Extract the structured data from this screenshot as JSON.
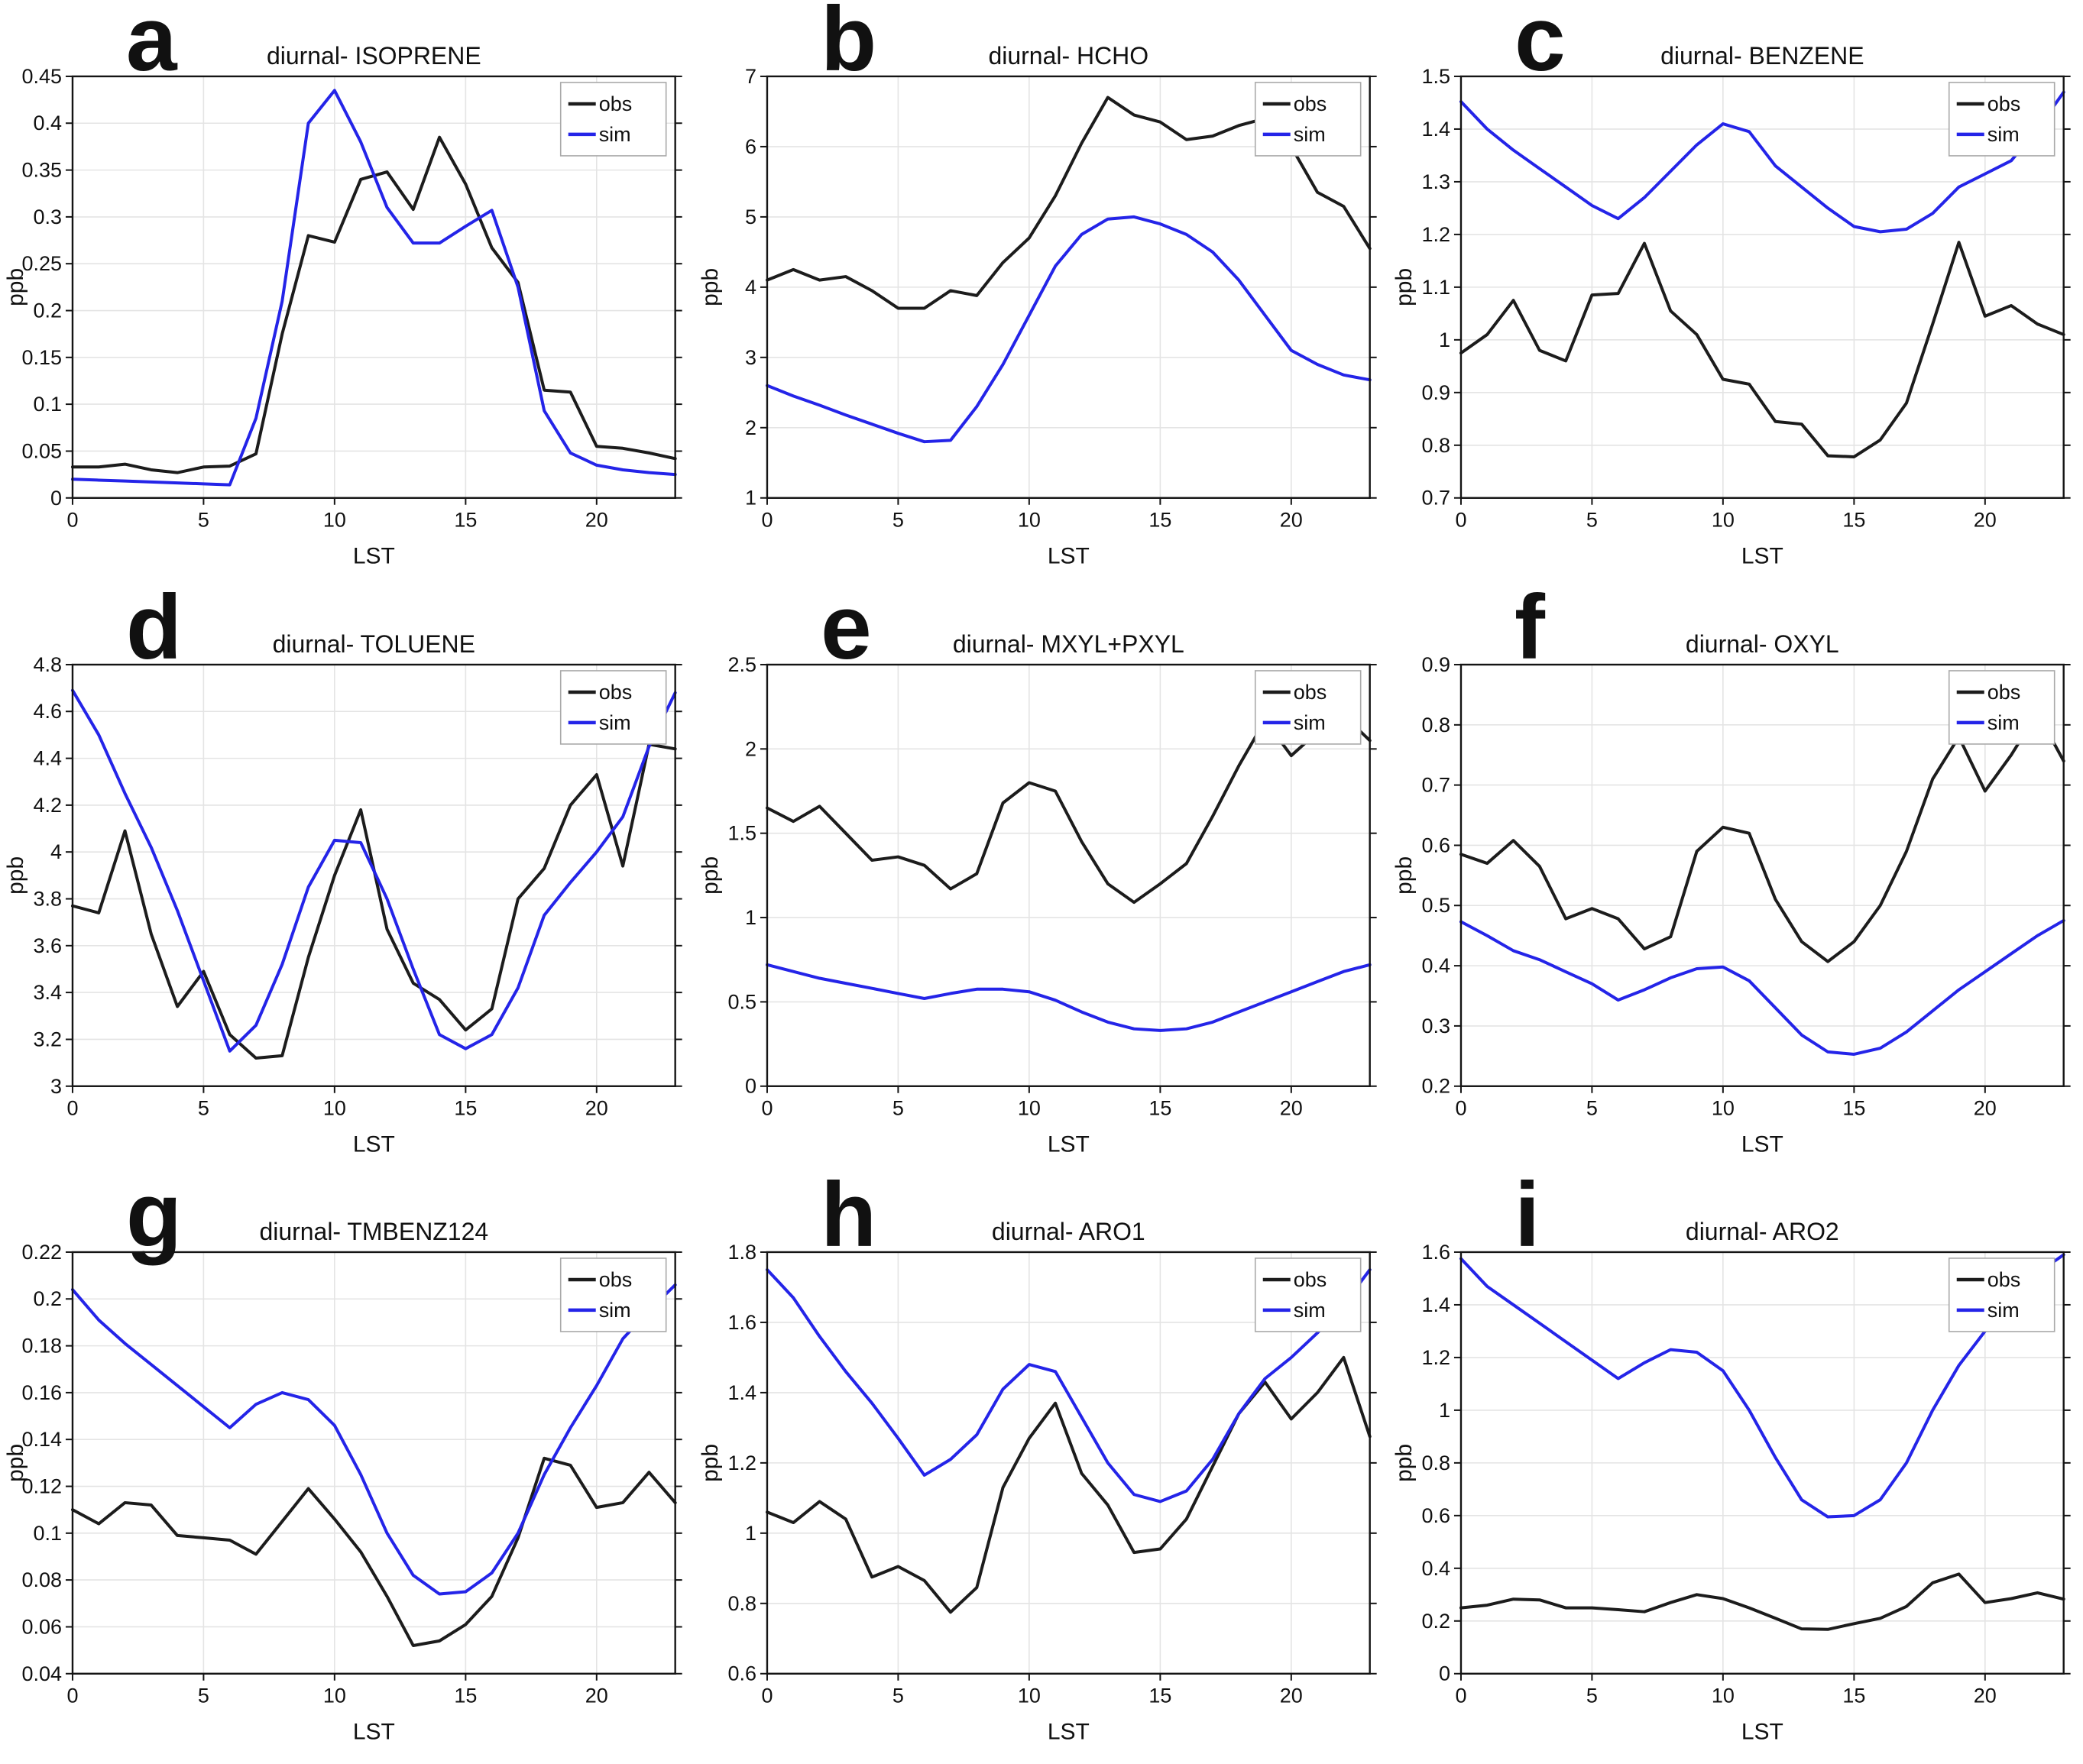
{
  "colors": {
    "obs": "#1c1c1c",
    "sim": "#2424e8",
    "grid": "#e4e4e4",
    "axis": "#141414",
    "background": "#ffffff"
  },
  "legend_labels": {
    "obs": "obs",
    "sim": "sim"
  },
  "chart_data": [
    {
      "panel": "a",
      "type": "line",
      "title": "diurnal- ISOPRENE",
      "xlabel": "LST",
      "ylabel": "ppb",
      "grid": true,
      "legend": [
        "obs",
        "sim"
      ],
      "legend_position": "top-right",
      "x": [
        0,
        1,
        2,
        3,
        4,
        5,
        6,
        7,
        8,
        9,
        10,
        11,
        12,
        13,
        14,
        15,
        16,
        17,
        18,
        19,
        20,
        21,
        22,
        23
      ],
      "xlim": [
        0,
        23
      ],
      "xticks": [
        0,
        5,
        10,
        15,
        20
      ],
      "ylim": [
        0,
        0.45
      ],
      "yticks": [
        0,
        0.05,
        0.1,
        0.15,
        0.2,
        0.25,
        0.3,
        0.35,
        0.4,
        0.45
      ],
      "series": [
        {
          "name": "obs",
          "values": [
            0.033,
            0.033,
            0.036,
            0.03,
            0.027,
            0.033,
            0.034,
            0.047,
            0.175,
            0.28,
            0.273,
            0.34,
            0.348,
            0.308,
            0.385,
            0.335,
            0.267,
            0.23,
            0.115,
            0.113,
            0.055,
            0.053,
            0.048,
            0.042
          ]
        },
        {
          "name": "sim",
          "values": [
            0.02,
            0.019,
            0.018,
            0.017,
            0.016,
            0.015,
            0.014,
            0.085,
            0.21,
            0.4,
            0.435,
            0.38,
            0.31,
            0.272,
            0.272,
            0.29,
            0.307,
            0.225,
            0.093,
            0.048,
            0.035,
            0.03,
            0.027,
            0.025
          ]
        }
      ]
    },
    {
      "panel": "b",
      "type": "line",
      "title": "diurnal- HCHO",
      "xlabel": "LST",
      "ylabel": "ppb",
      "grid": true,
      "legend": [
        "obs",
        "sim"
      ],
      "legend_position": "top-right",
      "x": [
        0,
        1,
        2,
        3,
        4,
        5,
        6,
        7,
        8,
        9,
        10,
        11,
        12,
        13,
        14,
        15,
        16,
        17,
        18,
        19,
        20,
        21,
        22,
        23
      ],
      "xlim": [
        0,
        23
      ],
      "xticks": [
        0,
        5,
        10,
        15,
        20
      ],
      "ylim": [
        1,
        7
      ],
      "yticks": [
        1,
        2,
        3,
        4,
        5,
        6,
        7
      ],
      "series": [
        {
          "name": "obs",
          "values": [
            4.1,
            4.25,
            4.1,
            4.15,
            3.95,
            3.7,
            3.7,
            3.95,
            3.88,
            4.35,
            4.7,
            5.3,
            6.05,
            6.7,
            6.45,
            6.35,
            6.1,
            6.15,
            6.3,
            6.4,
            6.0,
            5.35,
            5.15,
            4.55
          ]
        },
        {
          "name": "sim",
          "values": [
            2.6,
            2.45,
            2.32,
            2.18,
            2.05,
            1.92,
            1.8,
            1.82,
            2.3,
            2.9,
            3.6,
            4.3,
            4.75,
            4.97,
            5.0,
            4.9,
            4.75,
            4.5,
            4.1,
            3.6,
            3.1,
            2.9,
            2.75,
            2.68
          ]
        }
      ]
    },
    {
      "panel": "c",
      "type": "line",
      "title": "diurnal- BENZENE",
      "xlabel": "LST",
      "ylabel": "ppb",
      "grid": true,
      "legend": [
        "obs",
        "sim"
      ],
      "legend_position": "top-right",
      "x": [
        0,
        1,
        2,
        3,
        4,
        5,
        6,
        7,
        8,
        9,
        10,
        11,
        12,
        13,
        14,
        15,
        16,
        17,
        18,
        19,
        20,
        21,
        22,
        23
      ],
      "xlim": [
        0,
        23
      ],
      "xticks": [
        0,
        5,
        10,
        15,
        20
      ],
      "ylim": [
        0.7,
        1.5
      ],
      "yticks": [
        0.7,
        0.8,
        0.9,
        1,
        1.1,
        1.2,
        1.3,
        1.4,
        1.5
      ],
      "series": [
        {
          "name": "obs",
          "values": [
            0.975,
            1.01,
            1.075,
            0.98,
            0.96,
            1.085,
            1.088,
            1.183,
            1.055,
            1.01,
            0.925,
            0.916,
            0.845,
            0.84,
            0.78,
            0.778,
            0.81,
            0.88,
            1.03,
            1.185,
            1.045,
            1.065,
            1.03,
            1.01
          ]
        },
        {
          "name": "sim",
          "values": [
            1.452,
            1.4,
            1.36,
            1.325,
            1.29,
            1.255,
            1.23,
            1.27,
            1.32,
            1.37,
            1.41,
            1.395,
            1.33,
            1.29,
            1.25,
            1.215,
            1.205,
            1.21,
            1.24,
            1.29,
            1.315,
            1.34,
            1.4,
            1.47
          ]
        }
      ]
    },
    {
      "panel": "d",
      "type": "line",
      "title": "diurnal- TOLUENE",
      "xlabel": "LST",
      "ylabel": "ppb",
      "grid": true,
      "legend": [
        "obs",
        "sim"
      ],
      "legend_position": "top-right",
      "x": [
        0,
        1,
        2,
        3,
        4,
        5,
        6,
        7,
        8,
        9,
        10,
        11,
        12,
        13,
        14,
        15,
        16,
        17,
        18,
        19,
        20,
        21,
        22,
        23
      ],
      "xlim": [
        0,
        23
      ],
      "xticks": [
        0,
        5,
        10,
        15,
        20
      ],
      "ylim": [
        3,
        4.8
      ],
      "yticks": [
        3,
        3.2,
        3.4,
        3.6,
        3.8,
        4,
        4.2,
        4.4,
        4.6,
        4.8
      ],
      "series": [
        {
          "name": "obs",
          "values": [
            3.77,
            3.74,
            4.09,
            3.65,
            3.34,
            3.49,
            3.22,
            3.12,
            3.13,
            3.55,
            3.9,
            4.18,
            3.67,
            3.44,
            3.37,
            3.24,
            3.33,
            3.8,
            3.93,
            4.2,
            4.33,
            3.94,
            4.46,
            4.44
          ]
        },
        {
          "name": "sim",
          "values": [
            4.69,
            4.5,
            4.25,
            4.02,
            3.75,
            3.45,
            3.15,
            3.26,
            3.52,
            3.85,
            4.05,
            4.04,
            3.8,
            3.5,
            3.22,
            3.16,
            3.22,
            3.42,
            3.73,
            3.87,
            4.0,
            4.15,
            4.45,
            4.68
          ]
        }
      ]
    },
    {
      "panel": "e",
      "type": "line",
      "title": "diurnal- MXYL+PXYL",
      "xlabel": "LST",
      "ylabel": "ppb",
      "grid": true,
      "legend": [
        "obs",
        "sim"
      ],
      "legend_position": "top-right",
      "x": [
        0,
        1,
        2,
        3,
        4,
        5,
        6,
        7,
        8,
        9,
        10,
        11,
        12,
        13,
        14,
        15,
        16,
        17,
        18,
        19,
        20,
        21,
        22,
        23
      ],
      "xlim": [
        0,
        23
      ],
      "xticks": [
        0,
        5,
        10,
        15,
        20
      ],
      "ylim": [
        0,
        2.5
      ],
      "yticks": [
        0,
        0.5,
        1,
        1.5,
        2,
        2.5
      ],
      "series": [
        {
          "name": "obs",
          "values": [
            1.65,
            1.57,
            1.66,
            1.5,
            1.34,
            1.36,
            1.31,
            1.17,
            1.26,
            1.68,
            1.8,
            1.75,
            1.45,
            1.2,
            1.09,
            1.2,
            1.32,
            1.6,
            1.9,
            2.17,
            1.96,
            2.1,
            2.2,
            2.05
          ]
        },
        {
          "name": "sim",
          "values": [
            0.72,
            0.68,
            0.64,
            0.61,
            0.58,
            0.55,
            0.52,
            0.55,
            0.575,
            0.575,
            0.56,
            0.51,
            0.44,
            0.38,
            0.34,
            0.33,
            0.34,
            0.38,
            0.44,
            0.5,
            0.56,
            0.62,
            0.68,
            0.72
          ]
        }
      ]
    },
    {
      "panel": "f",
      "type": "line",
      "title": "diurnal- OXYL",
      "xlabel": "LST",
      "ylabel": "ppb",
      "grid": true,
      "legend": [
        "obs",
        "sim"
      ],
      "legend_position": "top-right",
      "x": [
        0,
        1,
        2,
        3,
        4,
        5,
        6,
        7,
        8,
        9,
        10,
        11,
        12,
        13,
        14,
        15,
        16,
        17,
        18,
        19,
        20,
        21,
        22,
        23
      ],
      "xlim": [
        0,
        23
      ],
      "xticks": [
        0,
        5,
        10,
        15,
        20
      ],
      "ylim": [
        0.2,
        0.9
      ],
      "yticks": [
        0.2,
        0.3,
        0.4,
        0.5,
        0.6,
        0.7,
        0.8,
        0.9
      ],
      "series": [
        {
          "name": "obs",
          "values": [
            0.585,
            0.57,
            0.608,
            0.565,
            0.478,
            0.495,
            0.478,
            0.428,
            0.448,
            0.59,
            0.63,
            0.62,
            0.51,
            0.44,
            0.407,
            0.44,
            0.5,
            0.59,
            0.71,
            0.78,
            0.69,
            0.75,
            0.82,
            0.74
          ]
        },
        {
          "name": "sim",
          "values": [
            0.473,
            0.45,
            0.425,
            0.41,
            0.39,
            0.37,
            0.343,
            0.36,
            0.38,
            0.395,
            0.398,
            0.375,
            0.33,
            0.285,
            0.257,
            0.253,
            0.263,
            0.29,
            0.325,
            0.36,
            0.39,
            0.42,
            0.45,
            0.475
          ]
        }
      ]
    },
    {
      "panel": "g",
      "type": "line",
      "title": "diurnal- TMBENZ124",
      "xlabel": "LST",
      "ylabel": "ppb",
      "grid": true,
      "legend": [
        "obs",
        "sim"
      ],
      "legend_position": "top-right",
      "x": [
        0,
        1,
        2,
        3,
        4,
        5,
        6,
        7,
        8,
        9,
        10,
        11,
        12,
        13,
        14,
        15,
        16,
        17,
        18,
        19,
        20,
        21,
        22,
        23
      ],
      "xlim": [
        0,
        23
      ],
      "xticks": [
        0,
        5,
        10,
        15,
        20
      ],
      "ylim": [
        0.04,
        0.22
      ],
      "yticks": [
        0.04,
        0.06,
        0.08,
        0.1,
        0.12,
        0.14,
        0.16,
        0.18,
        0.2,
        0.22
      ],
      "series": [
        {
          "name": "obs",
          "values": [
            0.11,
            0.104,
            0.113,
            0.112,
            0.099,
            0.098,
            0.097,
            0.091,
            0.105,
            0.119,
            0.106,
            0.092,
            0.073,
            0.052,
            0.054,
            0.061,
            0.073,
            0.098,
            0.132,
            0.129,
            0.111,
            0.113,
            0.126,
            0.113
          ]
        },
        {
          "name": "sim",
          "values": [
            0.204,
            0.191,
            0.181,
            0.172,
            0.163,
            0.154,
            0.145,
            0.155,
            0.16,
            0.157,
            0.146,
            0.125,
            0.1,
            0.082,
            0.074,
            0.075,
            0.083,
            0.1,
            0.125,
            0.145,
            0.163,
            0.183,
            0.195,
            0.206
          ]
        }
      ]
    },
    {
      "panel": "h",
      "type": "line",
      "title": "diurnal- ARO1",
      "xlabel": "LST",
      "ylabel": "ppb",
      "grid": true,
      "legend": [
        "obs",
        "sim"
      ],
      "legend_position": "top-right",
      "x": [
        0,
        1,
        2,
        3,
        4,
        5,
        6,
        7,
        8,
        9,
        10,
        11,
        12,
        13,
        14,
        15,
        16,
        17,
        18,
        19,
        20,
        21,
        22,
        23
      ],
      "xlim": [
        0,
        23
      ],
      "xticks": [
        0,
        5,
        10,
        15,
        20
      ],
      "ylim": [
        0.6,
        1.8
      ],
      "yticks": [
        0.6,
        0.8,
        1,
        1.2,
        1.4,
        1.6,
        1.8
      ],
      "series": [
        {
          "name": "obs",
          "values": [
            1.06,
            1.03,
            1.09,
            1.04,
            0.875,
            0.905,
            0.865,
            0.775,
            0.845,
            1.13,
            1.27,
            1.37,
            1.17,
            1.08,
            0.945,
            0.955,
            1.04,
            1.19,
            1.34,
            1.43,
            1.325,
            1.4,
            1.5,
            1.275
          ]
        },
        {
          "name": "sim",
          "values": [
            1.75,
            1.67,
            1.56,
            1.46,
            1.37,
            1.27,
            1.165,
            1.21,
            1.28,
            1.41,
            1.48,
            1.46,
            1.33,
            1.2,
            1.11,
            1.09,
            1.12,
            1.21,
            1.34,
            1.44,
            1.5,
            1.57,
            1.65,
            1.75
          ]
        }
      ]
    },
    {
      "panel": "i",
      "type": "line",
      "title": "diurnal- ARO2",
      "xlabel": "LST",
      "ylabel": "ppb",
      "grid": true,
      "legend": [
        "obs",
        "sim"
      ],
      "legend_position": "top-right",
      "x": [
        0,
        1,
        2,
        3,
        4,
        5,
        6,
        7,
        8,
        9,
        10,
        11,
        12,
        13,
        14,
        15,
        16,
        17,
        18,
        19,
        20,
        21,
        22,
        23
      ],
      "xlim": [
        0,
        23
      ],
      "xticks": [
        0,
        5,
        10,
        15,
        20
      ],
      "ylim": [
        0,
        1.6
      ],
      "yticks": [
        0,
        0.2,
        0.4,
        0.6,
        0.8,
        1,
        1.2,
        1.4,
        1.6
      ],
      "series": [
        {
          "name": "obs",
          "values": [
            0.25,
            0.26,
            0.283,
            0.28,
            0.25,
            0.25,
            0.243,
            0.235,
            0.27,
            0.3,
            0.285,
            0.25,
            0.21,
            0.17,
            0.168,
            0.19,
            0.21,
            0.255,
            0.345,
            0.378,
            0.27,
            0.285,
            0.307,
            0.283
          ]
        },
        {
          "name": "sim",
          "values": [
            1.575,
            1.47,
            1.4,
            1.33,
            1.26,
            1.19,
            1.12,
            1.18,
            1.23,
            1.22,
            1.15,
            1.0,
            0.82,
            0.66,
            0.595,
            0.6,
            0.66,
            0.8,
            1.0,
            1.17,
            1.3,
            1.43,
            1.52,
            1.59
          ]
        }
      ]
    }
  ]
}
